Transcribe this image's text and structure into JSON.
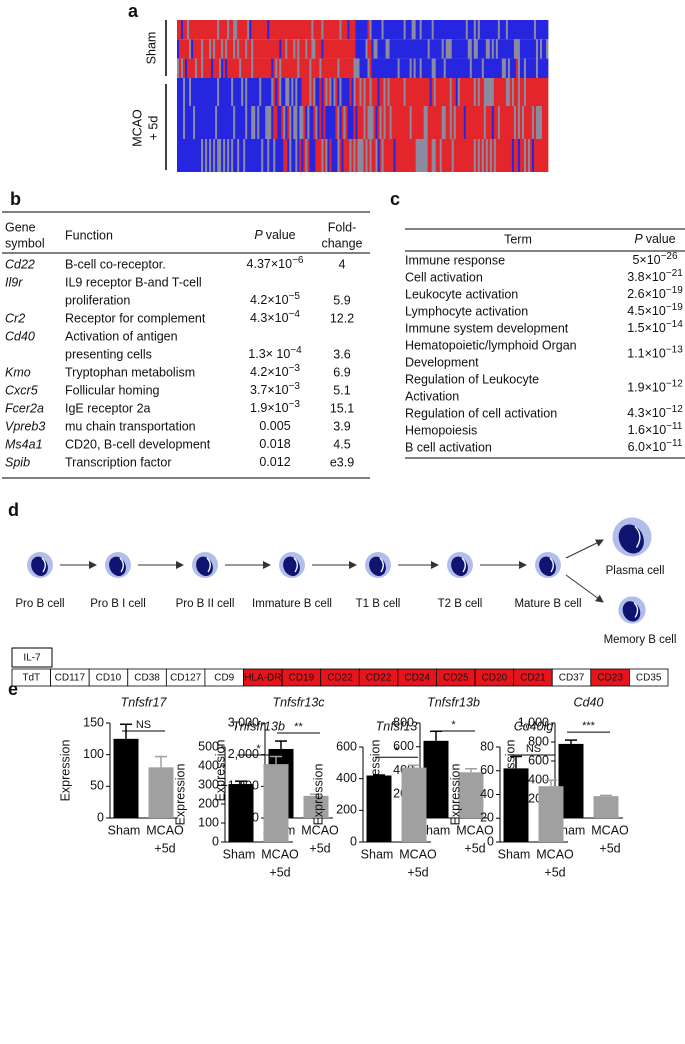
{
  "panel_labels": [
    "a",
    "b",
    "c",
    "d",
    "e"
  ],
  "heatmap": {
    "groups": [
      [
        "Sham"
      ],
      [
        "MCAO",
        "+ 5d"
      ]
    ]
  },
  "gene_table": {
    "header": {
      "gene": [
        "Gene",
        "symbol"
      ],
      "function": "Function",
      "p": [
        "P",
        "value"
      ],
      "fold": [
        "Fold-",
        "change"
      ]
    },
    "rows": [
      {
        "gene": "Cd22",
        "function": [
          "B-cell co-receptor."
        ],
        "p": [
          "4.37×10",
          "−6"
        ],
        "fold": "4"
      },
      {
        "gene": "Il9r",
        "function": [
          "IL9 receptor B-and T-cell",
          "proliferation"
        ],
        "p": [
          "4.2×10",
          "−5"
        ],
        "fold": "5.9"
      },
      {
        "gene": "Cr2",
        "function": [
          "Receptor for complement"
        ],
        "p": [
          "4.3×10",
          "−4"
        ],
        "fold": "12.2"
      },
      {
        "gene": "Cd40",
        "function": [
          "Activation of antigen",
          "presenting cells"
        ],
        "p": [
          "1.3× 10",
          "−4"
        ],
        "fold": "3.6"
      },
      {
        "gene": "Kmo",
        "function": [
          "Tryptophan metabolism"
        ],
        "p": [
          "4.2×10",
          "−3"
        ],
        "fold": "6.9"
      },
      {
        "gene": "Cxcr5",
        "function": [
          "Follicular homing"
        ],
        "p": [
          "3.7×10",
          "−3"
        ],
        "fold": "5.1"
      },
      {
        "gene": "Fcer2a",
        "function": [
          "IgE receptor 2a"
        ],
        "p": [
          "1.9×10",
          "−3"
        ],
        "fold": "15.1"
      },
      {
        "gene": "Vpreb3",
        "function": [
          "mu chain transportation"
        ],
        "p": [
          "0.005"
        ],
        "fold": "3.9"
      },
      {
        "gene": "Ms4a1",
        "function": [
          "CD20, B-cell development"
        ],
        "p": [
          "0.018"
        ],
        "fold": "4.5"
      },
      {
        "gene": "Spib",
        "function": [
          "Transcription factor"
        ],
        "p": [
          "0.012"
        ],
        "fold": "e3.9"
      }
    ]
  },
  "go_table": {
    "header": {
      "term": "Term",
      "p": [
        "P",
        "value"
      ]
    },
    "rows": [
      {
        "term": [
          "Immune response"
        ],
        "p": [
          "5×10",
          "−26"
        ]
      },
      {
        "term": [
          "Cell activation"
        ],
        "p": [
          "3.8×10",
          "−21"
        ]
      },
      {
        "term": [
          "Leukocyte activation"
        ],
        "p": [
          "2.6×10",
          "−19"
        ]
      },
      {
        "term": [
          "Lymphocyte activation"
        ],
        "p": [
          "4.5×10",
          "−19"
        ]
      },
      {
        "term": [
          "Immune system development"
        ],
        "p": [
          "1.5×10",
          "−14"
        ]
      },
      {
        "term": [
          "Hematopoietic/lymphoid Organ",
          "Development"
        ],
        "p": [
          "1.1×10",
          "−13"
        ]
      },
      {
        "term": [
          "Regulation of Leukocyte",
          "Activation"
        ],
        "p": [
          "1.9×10",
          "−12"
        ]
      },
      {
        "term": [
          "Regulation of cell activation"
        ],
        "p": [
          "4.3×10",
          "−12"
        ]
      },
      {
        "term": [
          "Hemopoiesis"
        ],
        "p": [
          "1.6×10",
          "−11"
        ]
      },
      {
        "term": [
          "B cell activation"
        ],
        "p": [
          "6.0×10",
          "−11"
        ]
      }
    ]
  },
  "pathway": {
    "cells": [
      "Pro B cell",
      "Pro B I cell",
      "Pro B II cell",
      "Immature B cell",
      "T1 B cell",
      "T2 B cell",
      "Mature B cell"
    ],
    "branches": [
      "Plasma cell",
      "Memory B cell"
    ],
    "il7": "IL-7",
    "markers": [
      {
        "label": "TdT",
        "color": "#ffffff"
      },
      {
        "label": "CD117",
        "color": "#ffffff"
      },
      {
        "label": "CD10",
        "color": "#ffffff"
      },
      {
        "label": "CD38",
        "color": "#ffffff"
      },
      {
        "label": "CD127",
        "color": "#ffffff"
      },
      {
        "label": "CD9",
        "color": "#ffffff"
      },
      {
        "label": "HLA-DR",
        "color": "#e8141b"
      },
      {
        "label": "CD19",
        "color": "#e8141b"
      },
      {
        "label": "CD22",
        "color": "#e8141b"
      },
      {
        "label": "CD22",
        "color": "#e8141b"
      },
      {
        "label": "CD24",
        "color": "#e8141b"
      },
      {
        "label": "CD25",
        "color": "#e8141b"
      },
      {
        "label": "CD20",
        "color": "#e8141b"
      },
      {
        "label": "CD21",
        "color": "#e8141b"
      },
      {
        "label": "CD37",
        "color": "#ffffff"
      },
      {
        "label": "CD23",
        "color": "#e8141b"
      },
      {
        "label": "CD35",
        "color": "#ffffff"
      }
    ]
  },
  "chart_data": [
    {
      "type": "bar",
      "title": "Tnfsfr17",
      "ylabel": "Expression",
      "categories": [
        [
          "Sham"
        ],
        [
          "MCAO",
          "+5d"
        ]
      ],
      "values": [
        125,
        80
      ],
      "errors": [
        23,
        17
      ],
      "colors": [
        "#000000",
        "#a0a0a0"
      ],
      "ylim": [
        0,
        150
      ],
      "yticks": [
        0,
        50,
        100,
        150
      ],
      "significance": "NS"
    },
    {
      "type": "bar",
      "title": "Tnfsfr13c",
      "ylabel": "Expression",
      "categories": [
        [
          "Sham"
        ],
        [
          "MCAO",
          "+5d"
        ]
      ],
      "values": [
        2180,
        700
      ],
      "errors": [
        250,
        50
      ],
      "colors": [
        "#000000",
        "#a0a0a0"
      ],
      "ylim": [
        0,
        3000
      ],
      "yticks": [
        0,
        {
          "value": 1000,
          "label": "1,000"
        },
        {
          "value": 2000,
          "label": "2,000"
        },
        {
          "value": 3000,
          "label": "3,000"
        }
      ],
      "significance": "**"
    },
    {
      "type": "bar",
      "title": "Tnfsfr13b",
      "ylabel": "Expression",
      "categories": [
        [
          "Sham"
        ],
        [
          "MCAO",
          "+5d"
        ]
      ],
      "values": [
        650,
        385
      ],
      "errors": [
        80,
        30
      ],
      "colors": [
        "#000000",
        "#a0a0a0"
      ],
      "ylim": [
        0,
        800
      ],
      "yticks": [
        0,
        200,
        400,
        600,
        800
      ],
      "significance": "*"
    },
    {
      "type": "bar",
      "title": "Cd40",
      "ylabel": "Expression",
      "categories": [
        [
          "Sham"
        ],
        [
          "MCAO",
          "+5d"
        ]
      ],
      "values": [
        780,
        230
      ],
      "errors": [
        40,
        8
      ],
      "colors": [
        "#000000",
        "#a0a0a0"
      ],
      "ylim": [
        0,
        1000
      ],
      "yticks": [
        0,
        200,
        400,
        600,
        800,
        {
          "value": 1000,
          "label": "1,000"
        }
      ],
      "significance": "***"
    },
    {
      "type": "bar",
      "title": "Tnfsfr13b",
      "ylabel": "Expression",
      "categories": [
        [
          "Sham"
        ],
        [
          "MCAO",
          "+5d"
        ]
      ],
      "values": [
        305,
        410
      ],
      "errors": [
        15,
        40
      ],
      "colors": [
        "#000000",
        "#a0a0a0"
      ],
      "ylim": [
        0,
        500
      ],
      "yticks": [
        0,
        100,
        200,
        300,
        400,
        500
      ],
      "significance": "*"
    },
    {
      "type": "bar",
      "title": "Tnfsf13",
      "ylabel": "Expression",
      "categories": [
        [
          "Sham"
        ],
        [
          "MCAO",
          "+5d"
        ]
      ],
      "values": [
        420,
        470
      ],
      "errors": [
        3,
        15
      ],
      "colors": [
        "#000000",
        "#a0a0a0"
      ],
      "ylim": [
        0,
        600
      ],
      "yticks": [
        0,
        200,
        400,
        600
      ],
      "significance": "*"
    },
    {
      "type": "bar",
      "title": "Cd40lg",
      "ylabel": "Expression",
      "categories": [
        [
          "Sham"
        ],
        [
          "MCAO",
          "+5d"
        ]
      ],
      "values": [
        62,
        47
      ],
      "errors": [
        10,
        5
      ],
      "colors": [
        "#000000",
        "#a0a0a0"
      ],
      "ylim": [
        0,
        80
      ],
      "yticks": [
        0,
        20,
        40,
        60,
        80
      ],
      "significance": "NS"
    }
  ]
}
